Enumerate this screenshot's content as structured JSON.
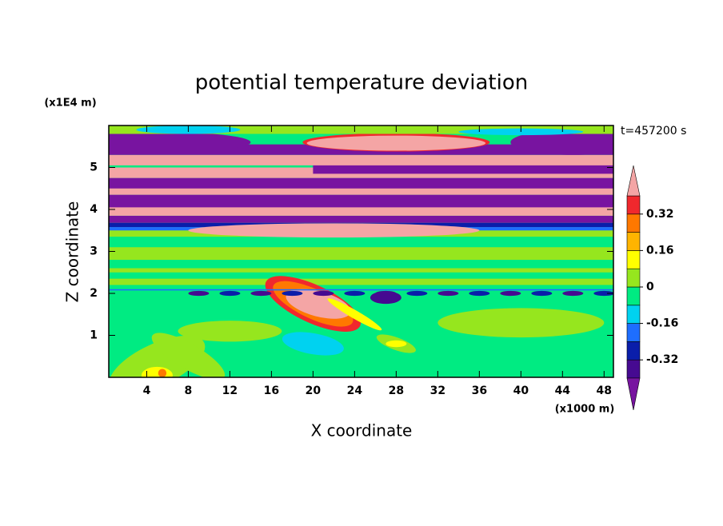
{
  "chart_data": {
    "type": "contour",
    "title": "potential temperature deviation",
    "xlabel": "X coordinate",
    "ylabel": "Z coordinate",
    "x_unit": "(x1000 m)",
    "y_unit": "(x1E4 m)",
    "annotation": "t=457200 s",
    "xlim": [
      0.35,
      48.9
    ],
    "ylim": [
      0,
      6
    ],
    "xticks": [
      4,
      8,
      12,
      16,
      20,
      24,
      28,
      32,
      36,
      40,
      44,
      48
    ],
    "yticks": [
      1,
      2,
      3,
      4,
      5
    ],
    "colorbar": {
      "lim": [
        -0.4,
        0.4
      ],
      "ticks": [
        -0.32,
        -0.16,
        0,
        0.16,
        0.32
      ],
      "colors": [
        "#7814a0",
        "#460a91",
        "#0a1eaa",
        "#1e6eff",
        "#00d2f0",
        "#00eb82",
        "#96e61e",
        "#ffff00",
        "#ffb400",
        "#ff7800",
        "#f0282d",
        "#f4a5a5"
      ]
    }
  }
}
